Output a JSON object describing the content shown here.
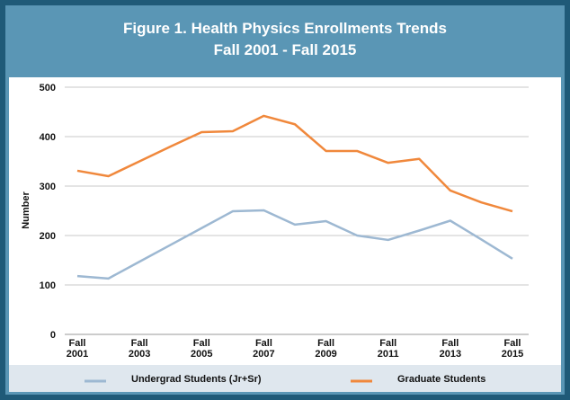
{
  "chart_data": {
    "type": "line",
    "title": "Figure 1. Health Physics Enrollments Trends",
    "subtitle": "Fall 2001 - Fall 2015",
    "ylabel": "Number",
    "categories": [
      "Fall 2001",
      null,
      "Fall 2003",
      null,
      "Fall 2005",
      null,
      "Fall 2007",
      null,
      "Fall 2009",
      null,
      "Fall 2011",
      null,
      "Fall 2013",
      null,
      "Fall 2015"
    ],
    "series": [
      {
        "name": "Undergrad Students (Jr+Sr)",
        "color": "#9db8d2",
        "values": [
          118,
          113,
          147,
          181,
          215,
          249,
          251,
          222,
          229,
          200,
          191,
          210,
          230,
          192,
          153
        ]
      },
      {
        "name": "Graduate Students",
        "color": "#f0883c",
        "values": [
          331,
          320,
          350,
          380,
          409,
          411,
          442,
          425,
          371,
          371,
          347,
          355,
          291,
          267,
          249
        ]
      }
    ],
    "ylim": [
      0,
      500
    ],
    "yticks": [
      0,
      100,
      200,
      300,
      400,
      500
    ],
    "grid": true
  }
}
